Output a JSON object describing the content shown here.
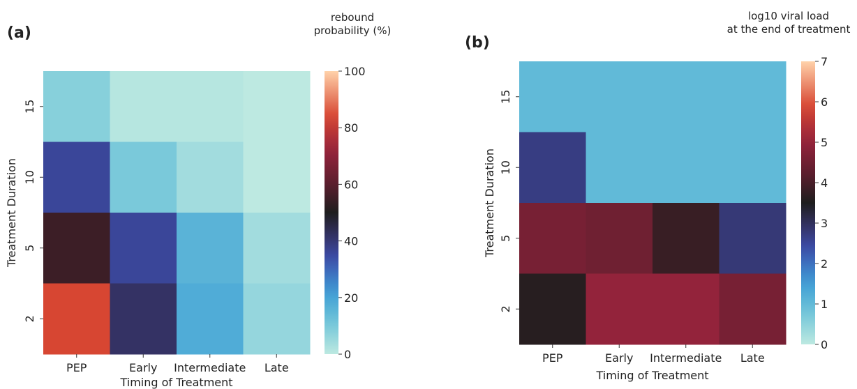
{
  "chart_data": [
    {
      "type": "heatmap",
      "panel_label": "(a)",
      "xlabel": "Timing of Treatment",
      "ylabel": "Treatment Duration",
      "x_categories": [
        "PEP",
        "Early",
        "Intermediate",
        "Late"
      ],
      "y_categories": [
        "15",
        "10",
        "5",
        "2"
      ],
      "values": [
        [
          8,
          1,
          1,
          0
        ],
        [
          36,
          10,
          4,
          0
        ],
        [
          55,
          36,
          16,
          4
        ],
        [
          84,
          42,
          18,
          6
        ]
      ],
      "colorbar": {
        "title": [
          "rebound",
          "probability (%)"
        ],
        "min": 0,
        "max": 100,
        "ticks": [
          "0",
          "20",
          "40",
          "60",
          "80",
          "100"
        ]
      }
    },
    {
      "type": "heatmap",
      "panel_label": "(b)",
      "xlabel": "Timing of Treatment",
      "ylabel": "Treatment Duration",
      "x_categories": [
        "PEP",
        "Early",
        "Intermediate",
        "Late"
      ],
      "y_categories": [
        "15",
        "10",
        "5",
        "2"
      ],
      "values": [
        [
          1.0,
          1.0,
          1.0,
          1.0
        ],
        [
          2.7,
          1.0,
          1.0,
          1.0
        ],
        [
          4.6,
          4.5,
          3.8,
          2.8
        ],
        [
          3.6,
          5.0,
          5.0,
          4.6
        ]
      ],
      "colorbar": {
        "title": [
          "log10 viral load",
          "at the end of treatment"
        ],
        "min": 0,
        "max": 7,
        "ticks": [
          "0",
          "1",
          "2",
          "3",
          "4",
          "5",
          "6",
          "7"
        ]
      }
    }
  ]
}
